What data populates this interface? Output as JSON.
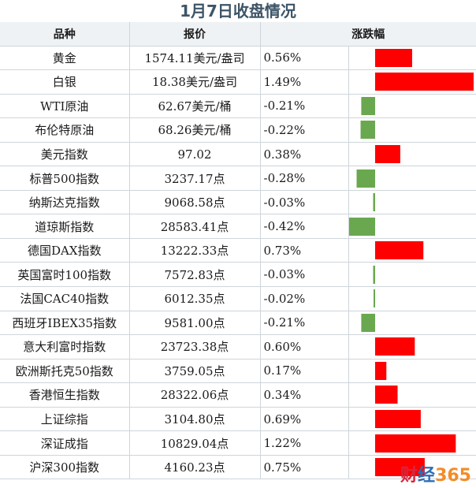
{
  "title": "1月7日收盘情况",
  "headers": {
    "name": "品种",
    "price": "报价",
    "change": "涨跌幅"
  },
  "colors": {
    "up": "#ff0000",
    "down": "#6aa84f",
    "header_bg": "#eef2f5",
    "title": "#3d5567"
  },
  "watermark": {
    "a": "财",
    "b": "经",
    "c": "365",
    "url": "www.caijing365.com"
  },
  "chart_data": {
    "type": "bar",
    "orientation": "horizontal",
    "categories": [
      "黄金",
      "白银",
      "WTI原油",
      "布伦特原油",
      "美元指数",
      "标普500指数",
      "纳斯达克指数",
      "道琼斯指数",
      "德国DAX指数",
      "英国富时100指数",
      "法国CAC40指数",
      "西班牙IBEX35指数",
      "意大利富时指数",
      "欧洲斯托克50指数",
      "香港恒生指数",
      "上证综指",
      "深证成指",
      "沪深300指数"
    ],
    "values": [
      0.56,
      1.49,
      -0.21,
      -0.22,
      0.38,
      -0.28,
      -0.03,
      -0.42,
      0.73,
      -0.03,
      -0.02,
      -0.21,
      0.6,
      0.17,
      0.34,
      0.69,
      1.22,
      0.75
    ],
    "xlim": [
      -0.42,
      1.49
    ]
  },
  "rows": [
    {
      "name": "黄金",
      "price": "1574.11美元/盎司",
      "pct": "0.56%"
    },
    {
      "name": "白银",
      "price": "18.38美元/盎司",
      "pct": "1.49%"
    },
    {
      "name": "WTI原油",
      "price": "62.67美元/桶",
      "pct": "-0.21%"
    },
    {
      "name": "布伦特原油",
      "price": "68.26美元/桶",
      "pct": "-0.22%"
    },
    {
      "name": "美元指数",
      "price": "97.02",
      "pct": "0.38%"
    },
    {
      "name": "标普500指数",
      "price": "3237.17点",
      "pct": "-0.28%"
    },
    {
      "name": "纳斯达克指数",
      "price": "9068.58点",
      "pct": "-0.03%"
    },
    {
      "name": "道琼斯指数",
      "price": "28583.41点",
      "pct": "-0.42%"
    },
    {
      "name": "德国DAX指数",
      "price": "13222.33点",
      "pct": "0.73%"
    },
    {
      "name": "英国富时100指数",
      "price": "7572.83点",
      "pct": "-0.03%"
    },
    {
      "name": "法国CAC40指数",
      "price": "6012.35点",
      "pct": "-0.02%"
    },
    {
      "name": "西班牙IBEX35指数",
      "price": "9581.00点",
      "pct": "-0.21%"
    },
    {
      "name": "意大利富时指数",
      "price": "23723.38点",
      "pct": "0.60%"
    },
    {
      "name": "欧洲斯托克50指数",
      "price": "3759.05点",
      "pct": "0.17%"
    },
    {
      "name": "香港恒生指数",
      "price": "28322.06点",
      "pct": "0.34%"
    },
    {
      "name": "上证综指",
      "price": "3104.80点",
      "pct": "0.69%"
    },
    {
      "name": "深证成指",
      "price": "10829.04点",
      "pct": "1.22%"
    },
    {
      "name": "沪深300指数",
      "price": "4160.23点",
      "pct": "0.75%"
    }
  ]
}
